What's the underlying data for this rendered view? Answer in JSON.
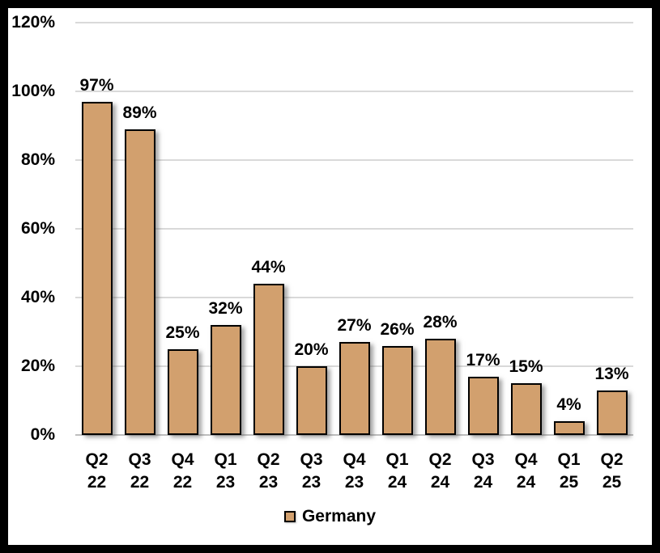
{
  "chart_data": {
    "type": "bar",
    "title": "",
    "xlabel": "",
    "ylabel": "",
    "categories": [
      [
        "Q2",
        "22"
      ],
      [
        "Q3",
        "22"
      ],
      [
        "Q4",
        "22"
      ],
      [
        "Q1",
        "23"
      ],
      [
        "Q2",
        "23"
      ],
      [
        "Q3",
        "23"
      ],
      [
        "Q4",
        "23"
      ],
      [
        "Q1",
        "24"
      ],
      [
        "Q2",
        "24"
      ],
      [
        "Q3",
        "24"
      ],
      [
        "Q4",
        "24"
      ],
      [
        "Q1",
        "25"
      ],
      [
        "Q2",
        "25"
      ]
    ],
    "values": [
      97,
      89,
      25,
      32,
      44,
      20,
      27,
      26,
      28,
      17,
      15,
      4,
      13
    ],
    "data_labels": [
      "97%",
      "89%",
      "25%",
      "32%",
      "44%",
      "20%",
      "27%",
      "26%",
      "28%",
      "17%",
      "15%",
      "4%",
      "13%"
    ],
    "ylim": [
      0,
      120
    ],
    "yticks": [
      0,
      20,
      40,
      60,
      80,
      100,
      120
    ],
    "ytick_labels": [
      "0%",
      "20%",
      "40%",
      "60%",
      "80%",
      "100%",
      "120%"
    ],
    "grid": true,
    "legend_label": "Germany",
    "legend_position": "bottom-center",
    "colors": {
      "bar_fill": "#D2A06E",
      "bar_border": "#000000",
      "gridline": "#D9D9D9",
      "axis_line": "#BFBFBF",
      "text": "#000000",
      "background": "#FFFFFF",
      "frame_border": "#000000"
    }
  }
}
